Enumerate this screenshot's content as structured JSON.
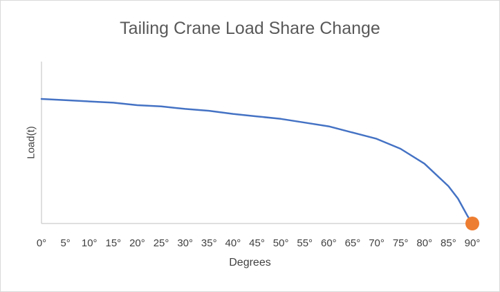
{
  "chart_data": {
    "type": "line",
    "title": "Tailing Crane Load Share Change",
    "xlabel": "Degrees",
    "ylabel": "Load(t)",
    "categories": [
      "0°",
      "5°",
      "10°",
      "15°",
      "20°",
      "25°",
      "30°",
      "35°",
      "40°",
      "45°",
      "50°",
      "55°",
      "60°",
      "65°",
      "70°",
      "75°",
      "80°",
      "85°",
      "90°"
    ],
    "x": [
      0,
      5,
      10,
      15,
      20,
      25,
      30,
      35,
      40,
      45,
      50,
      55,
      60,
      65,
      70,
      75,
      80,
      85,
      87,
      88,
      89,
      90
    ],
    "xlim": [
      0,
      90
    ],
    "ylim": [
      0,
      1.3
    ],
    "y_tick_labels_shown": false,
    "grid": false,
    "legend": "none",
    "series": [
      {
        "values": [
          1.0,
          0.99,
          0.98,
          0.97,
          0.95,
          0.94,
          0.92,
          0.905,
          0.88,
          0.86,
          0.84,
          0.81,
          0.78,
          0.73,
          0.68,
          0.6,
          0.48,
          0.3,
          0.2,
          0.13,
          0.06,
          0.0
        ],
        "color": "#4472C4"
      }
    ],
    "highlight_point": {
      "x": 90,
      "y": 0.0,
      "color": "#ED7D31"
    }
  }
}
